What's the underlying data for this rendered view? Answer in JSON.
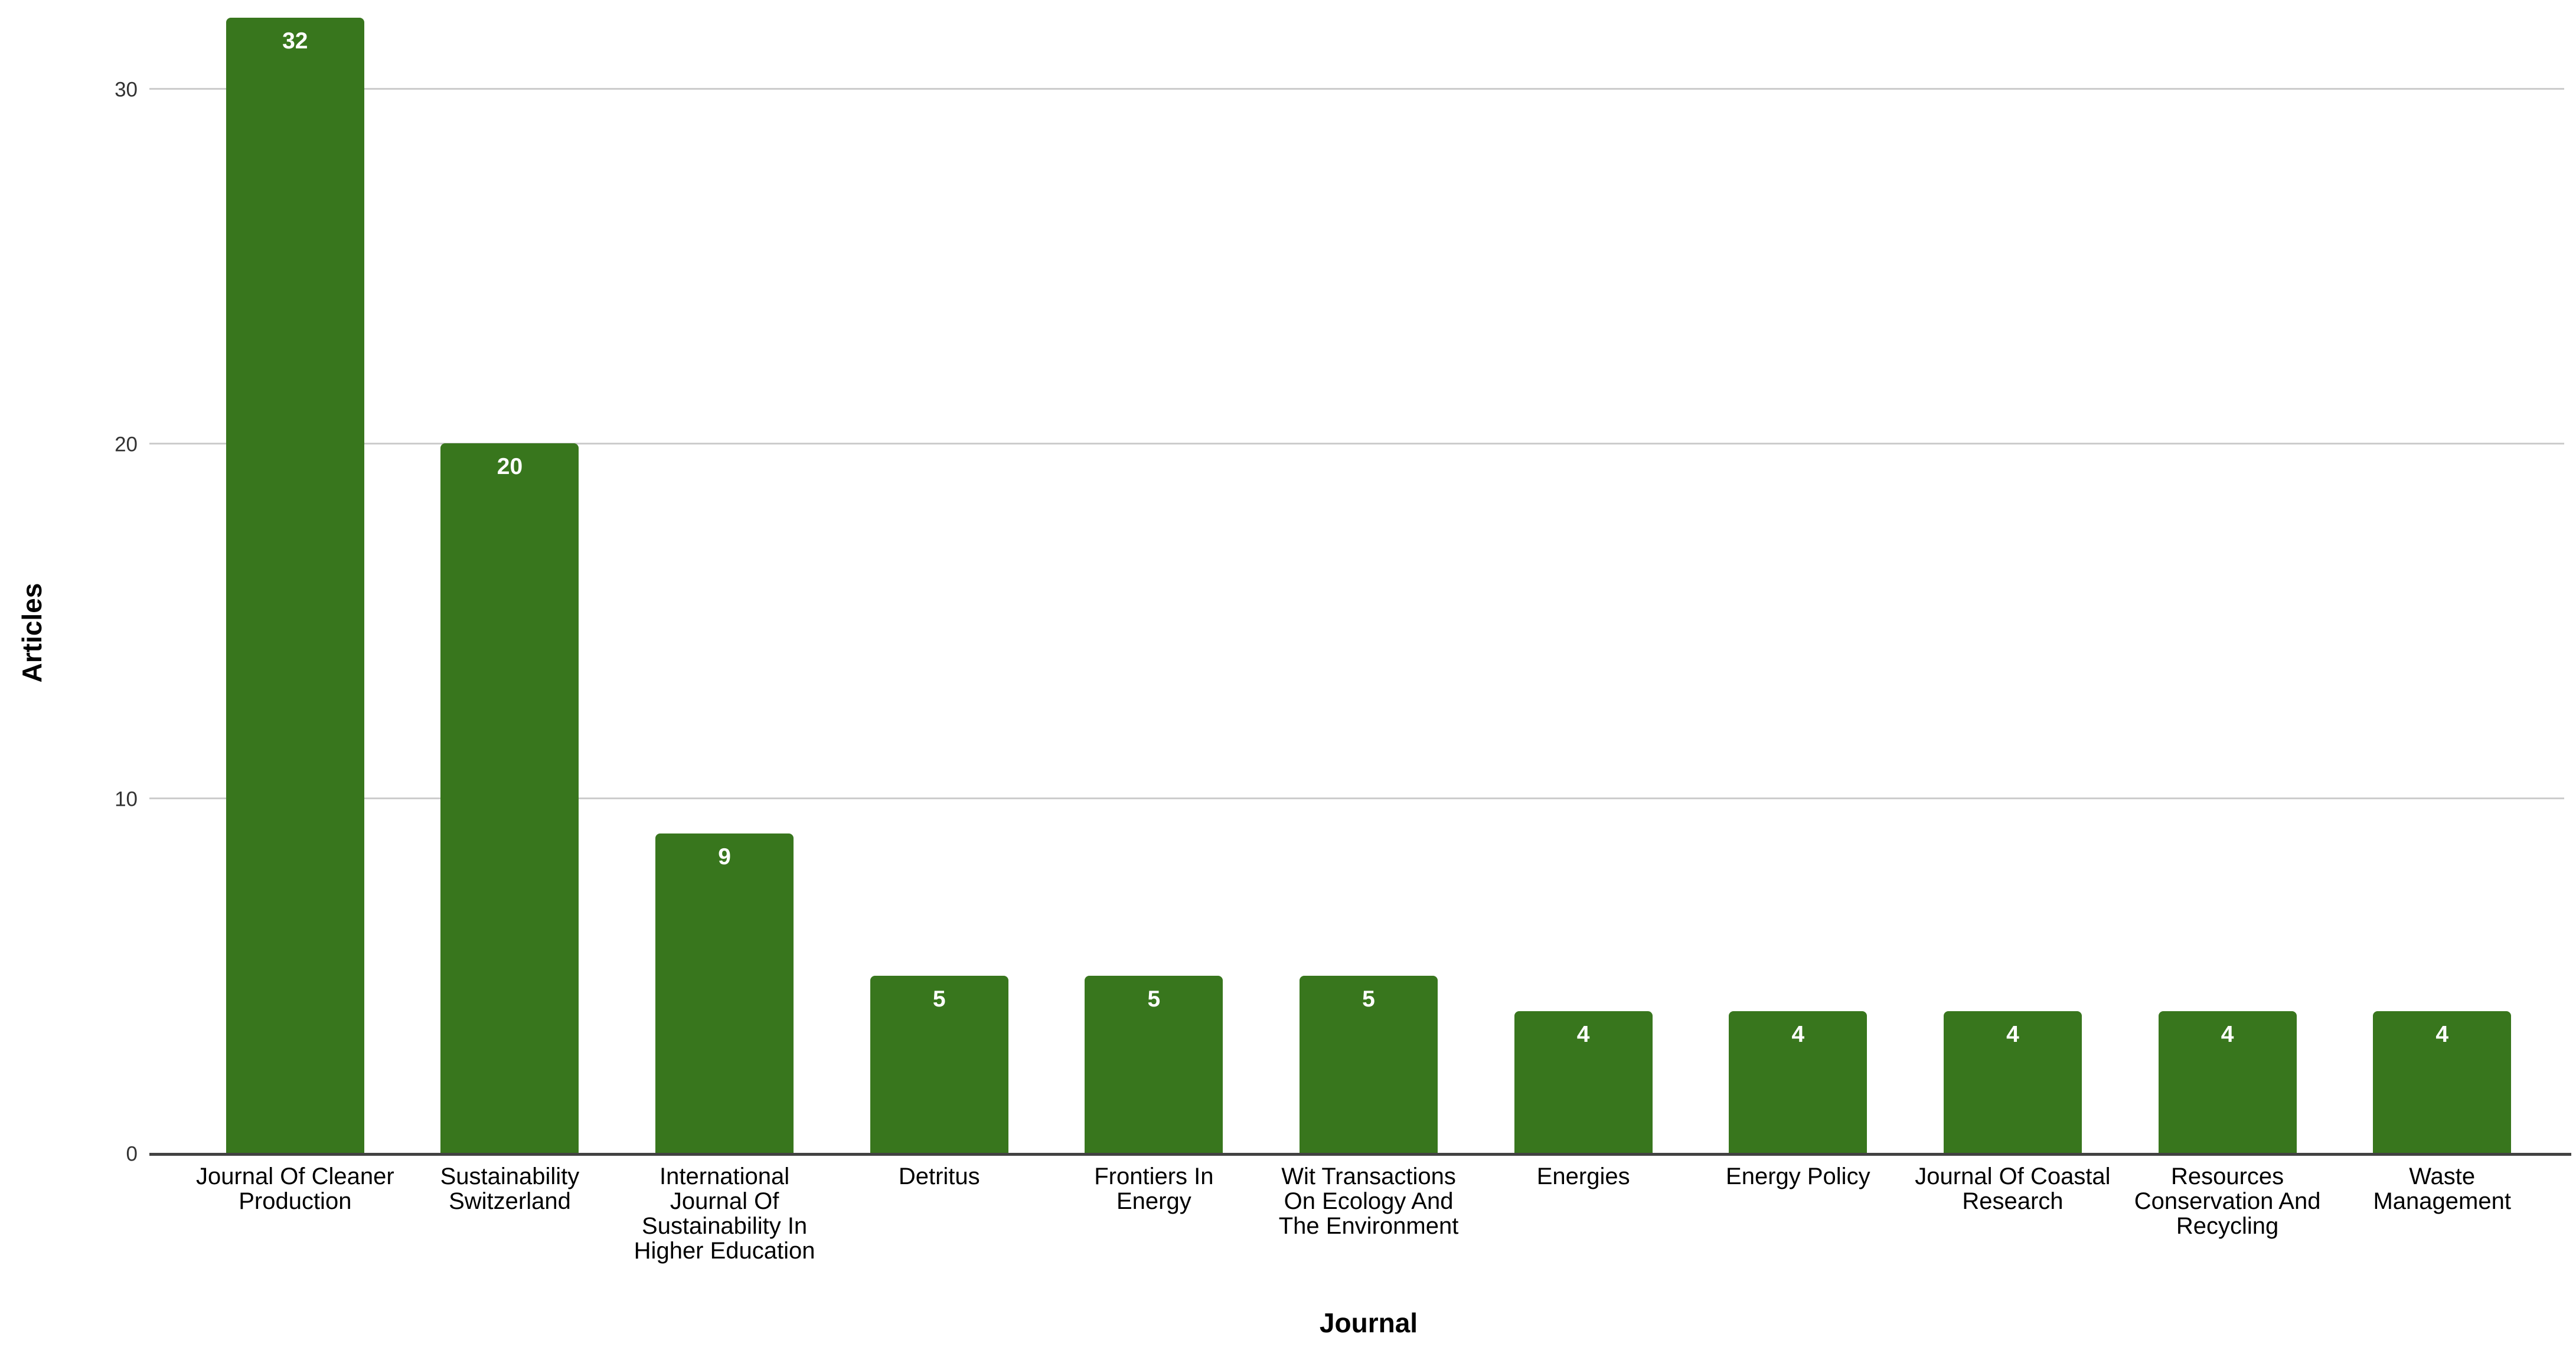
{
  "chart_data": {
    "type": "bar",
    "title": "",
    "xlabel": "Journal",
    "ylabel": "Articles",
    "categories": [
      "Journal Of Cleaner Production",
      "Sustainability Switzerland",
      "International Journal Of Sustainability In Higher Education",
      "Detritus",
      "Frontiers In Energy",
      "Wit Transactions On Ecology And The Environment",
      "Energies",
      "Energy Policy",
      "Journal Of Coastal Research",
      "Resources Conservation And Recycling",
      "Waste Management"
    ],
    "values": [
      32,
      20,
      9,
      5,
      5,
      5,
      4,
      4,
      4,
      4,
      4
    ],
    "value_labels": [
      "32",
      "20",
      "9",
      "5",
      "5",
      "5",
      "4",
      "4",
      "4",
      "4",
      "4"
    ],
    "yticks": [
      0,
      10,
      20,
      30
    ],
    "ylim": [
      0,
      32.5
    ],
    "grid": true,
    "legend": false,
    "bar_color": "#38761d",
    "value_label_color": "#ffffff",
    "gridline_color": "#cccccc",
    "axis_line_color": "#424242",
    "tick_label_color": "#333333"
  },
  "display": {
    "category_lines": [
      "Journal Of Cleaner\nProduction",
      "Sustainability\nSwitzerland",
      "International\nJournal Of\nSustainability In\nHigher Education",
      "Detritus",
      "Frontiers In\nEnergy",
      "Wit Transactions\nOn Ecology And\nThe Environment",
      "Energies",
      "Energy Policy",
      "Journal Of Coastal\nResearch",
      "Resources\nConservation And\nRecycling",
      "Waste\nManagement"
    ]
  }
}
